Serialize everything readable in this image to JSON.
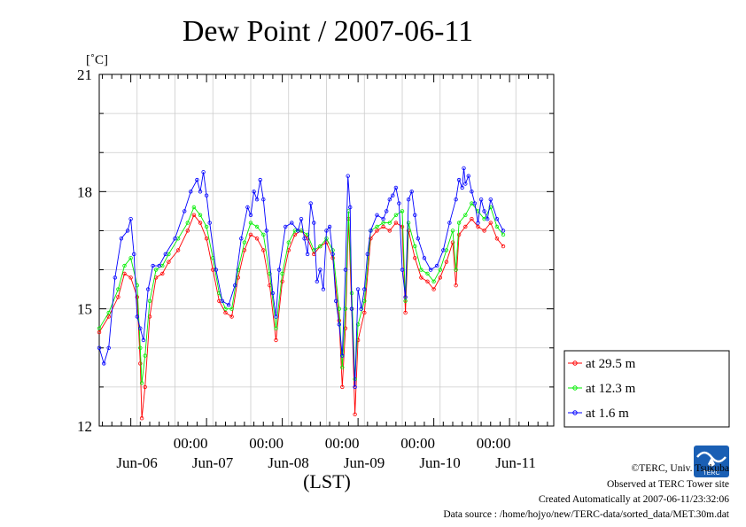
{
  "chart_data": {
    "type": "line",
    "title": "Dew Point / 2007-06-11",
    "ylabel": "[˚C]",
    "xlabel": "(LST)",
    "ylim": [
      12,
      21
    ],
    "yticks": [
      12,
      15,
      18,
      21
    ],
    "x_unit": "hours from 2007-06-05 14:00 LST",
    "xlim": [
      0,
      144
    ],
    "midnight_labels": [
      "00:00",
      "00:00",
      "00:00",
      "00:00",
      "00:00"
    ],
    "date_labels": [
      "Jun-06",
      "Jun-07",
      "Jun-08",
      "Jun-09",
      "Jun-10",
      "Jun-11"
    ],
    "grid": true,
    "legend_position": "right",
    "series": [
      {
        "name": "at 29.5 m",
        "color": "#ff0000",
        "points": [
          [
            0,
            14.4
          ],
          [
            3,
            14.8
          ],
          [
            6,
            15.3
          ],
          [
            8,
            15.9
          ],
          [
            10,
            15.8
          ],
          [
            12,
            15.3
          ],
          [
            13,
            13.6
          ],
          [
            13.5,
            12.2
          ],
          [
            14.5,
            13.0
          ],
          [
            16,
            14.8
          ],
          [
            18,
            15.8
          ],
          [
            20,
            15.9
          ],
          [
            22,
            16.2
          ],
          [
            25,
            16.5
          ],
          [
            28,
            17.0
          ],
          [
            30,
            17.4
          ],
          [
            32,
            17.2
          ],
          [
            34,
            16.8
          ],
          [
            36,
            16.0
          ],
          [
            38,
            15.2
          ],
          [
            40,
            14.9
          ],
          [
            42,
            14.8
          ],
          [
            44,
            15.8
          ],
          [
            46,
            16.5
          ],
          [
            48,
            16.9
          ],
          [
            50,
            16.8
          ],
          [
            52,
            16.5
          ],
          [
            54,
            15.6
          ],
          [
            56,
            14.2
          ],
          [
            58,
            15.7
          ],
          [
            60,
            16.5
          ],
          [
            62,
            16.9
          ],
          [
            64,
            17.0
          ],
          [
            66,
            16.8
          ],
          [
            68,
            16.4
          ],
          [
            70,
            16.6
          ],
          [
            72,
            16.7
          ],
          [
            74,
            16.3
          ],
          [
            76,
            14.7
          ],
          [
            77,
            13.0
          ],
          [
            78,
            14.5
          ],
          [
            79,
            17.3
          ],
          [
            80,
            15.0
          ],
          [
            81,
            12.3
          ],
          [
            82,
            14.2
          ],
          [
            84,
            14.9
          ],
          [
            86,
            16.8
          ],
          [
            88,
            17.0
          ],
          [
            90,
            17.1
          ],
          [
            92,
            17.0
          ],
          [
            94,
            17.2
          ],
          [
            96,
            17.1
          ],
          [
            97,
            14.9
          ],
          [
            98,
            17.0
          ],
          [
            100,
            16.3
          ],
          [
            102,
            15.8
          ],
          [
            104,
            15.7
          ],
          [
            106,
            15.5
          ],
          [
            108,
            15.8
          ],
          [
            110,
            16.2
          ],
          [
            112,
            16.7
          ],
          [
            113,
            15.6
          ],
          [
            114,
            16.9
          ],
          [
            116,
            17.1
          ],
          [
            118,
            17.3
          ],
          [
            120,
            17.1
          ],
          [
            122,
            17.0
          ],
          [
            124,
            17.2
          ],
          [
            126,
            16.8
          ],
          [
            128,
            16.6
          ]
        ]
      },
      {
        "name": "at 12.3 m",
        "color": "#00ee00",
        "points": [
          [
            0,
            14.5
          ],
          [
            3,
            14.9
          ],
          [
            6,
            15.5
          ],
          [
            8,
            16.1
          ],
          [
            10,
            16.3
          ],
          [
            12,
            15.6
          ],
          [
            13,
            14.0
          ],
          [
            13.5,
            13.1
          ],
          [
            14.5,
            13.8
          ],
          [
            16,
            15.2
          ],
          [
            18,
            16.0
          ],
          [
            20,
            16.1
          ],
          [
            22,
            16.4
          ],
          [
            25,
            16.8
          ],
          [
            28,
            17.2
          ],
          [
            30,
            17.6
          ],
          [
            32,
            17.4
          ],
          [
            34,
            17.1
          ],
          [
            36,
            16.3
          ],
          [
            38,
            15.4
          ],
          [
            40,
            15.0
          ],
          [
            42,
            15.0
          ],
          [
            44,
            16.0
          ],
          [
            46,
            16.7
          ],
          [
            48,
            17.2
          ],
          [
            50,
            17.1
          ],
          [
            52,
            16.9
          ],
          [
            54,
            15.9
          ],
          [
            56,
            14.5
          ],
          [
            58,
            15.9
          ],
          [
            60,
            16.7
          ],
          [
            62,
            17.0
          ],
          [
            64,
            17.0
          ],
          [
            66,
            16.9
          ],
          [
            68,
            16.5
          ],
          [
            70,
            16.6
          ],
          [
            72,
            16.8
          ],
          [
            74,
            16.5
          ],
          [
            76,
            15.0
          ],
          [
            77,
            13.5
          ],
          [
            78,
            15.0
          ],
          [
            79,
            17.5
          ],
          [
            80,
            15.4
          ],
          [
            81,
            13.2
          ],
          [
            82,
            14.6
          ],
          [
            84,
            15.2
          ],
          [
            86,
            17.0
          ],
          [
            88,
            17.1
          ],
          [
            90,
            17.2
          ],
          [
            92,
            17.2
          ],
          [
            94,
            17.4
          ],
          [
            96,
            17.5
          ],
          [
            97,
            15.2
          ],
          [
            98,
            17.2
          ],
          [
            100,
            16.6
          ],
          [
            102,
            16.0
          ],
          [
            104,
            15.9
          ],
          [
            106,
            15.7
          ],
          [
            108,
            16.0
          ],
          [
            110,
            16.5
          ],
          [
            112,
            17.0
          ],
          [
            113,
            16.0
          ],
          [
            114,
            17.2
          ],
          [
            116,
            17.4
          ],
          [
            118,
            17.7
          ],
          [
            120,
            17.5
          ],
          [
            122,
            17.3
          ],
          [
            124,
            17.6
          ],
          [
            126,
            17.1
          ],
          [
            128,
            16.9
          ]
        ]
      },
      {
        "name": "at 1.6 m",
        "color": "#0000ff",
        "points": [
          [
            0,
            14.0
          ],
          [
            1.5,
            13.6
          ],
          [
            3,
            14.0
          ],
          [
            5,
            15.8
          ],
          [
            7,
            16.8
          ],
          [
            9,
            17.0
          ],
          [
            10,
            17.3
          ],
          [
            11,
            16.4
          ],
          [
            12,
            14.8
          ],
          [
            13,
            14.5
          ],
          [
            14,
            14.2
          ],
          [
            15.5,
            15.5
          ],
          [
            17,
            16.1
          ],
          [
            19,
            16.1
          ],
          [
            21,
            16.4
          ],
          [
            24,
            16.8
          ],
          [
            27,
            17.5
          ],
          [
            29,
            18.0
          ],
          [
            31,
            18.3
          ],
          [
            32,
            18.0
          ],
          [
            33,
            18.5
          ],
          [
            34,
            17.9
          ],
          [
            35,
            17.2
          ],
          [
            37,
            16.0
          ],
          [
            39,
            15.2
          ],
          [
            41,
            15.1
          ],
          [
            43,
            15.6
          ],
          [
            45,
            16.8
          ],
          [
            47,
            17.6
          ],
          [
            48,
            17.4
          ],
          [
            49,
            18.0
          ],
          [
            50,
            17.8
          ],
          [
            51,
            18.3
          ],
          [
            52,
            17.8
          ],
          [
            53,
            17.0
          ],
          [
            55,
            15.4
          ],
          [
            56,
            14.8
          ],
          [
            57,
            16.0
          ],
          [
            59,
            17.1
          ],
          [
            61,
            17.2
          ],
          [
            63,
            17.0
          ],
          [
            64,
            17.3
          ],
          [
            65,
            16.8
          ],
          [
            66,
            16.4
          ],
          [
            67,
            17.7
          ],
          [
            68,
            17.2
          ],
          [
            69,
            15.7
          ],
          [
            70,
            16.0
          ],
          [
            71,
            15.5
          ],
          [
            72,
            17.0
          ],
          [
            73,
            17.1
          ],
          [
            74,
            16.4
          ],
          [
            75,
            15.2
          ],
          [
            76,
            14.6
          ],
          [
            77,
            13.8
          ],
          [
            78,
            16.0
          ],
          [
            78.8,
            18.4
          ],
          [
            79.5,
            17.6
          ],
          [
            80,
            15.0
          ],
          [
            81,
            13.0
          ],
          [
            82,
            15.5
          ],
          [
            83,
            15.0
          ],
          [
            84,
            15.5
          ],
          [
            85,
            16.4
          ],
          [
            86,
            17.0
          ],
          [
            88,
            17.4
          ],
          [
            90,
            17.3
          ],
          [
            91,
            17.5
          ],
          [
            92,
            17.8
          ],
          [
            93,
            17.9
          ],
          [
            94,
            18.1
          ],
          [
            95,
            17.7
          ],
          [
            96,
            16.0
          ],
          [
            97,
            15.3
          ],
          [
            98,
            17.8
          ],
          [
            99,
            18.0
          ],
          [
            100,
            17.4
          ],
          [
            101,
            16.8
          ],
          [
            103,
            16.3
          ],
          [
            105,
            16.0
          ],
          [
            107,
            16.1
          ],
          [
            109,
            16.5
          ],
          [
            111,
            17.2
          ],
          [
            113,
            17.8
          ],
          [
            114,
            18.3
          ],
          [
            115,
            18.1
          ],
          [
            115.5,
            18.6
          ],
          [
            116,
            18.2
          ],
          [
            117,
            18.4
          ],
          [
            118,
            18.0
          ],
          [
            119,
            17.7
          ],
          [
            120,
            17.2
          ],
          [
            121,
            17.8
          ],
          [
            122,
            17.5
          ],
          [
            123,
            17.3
          ],
          [
            124,
            17.8
          ],
          [
            126,
            17.3
          ],
          [
            128,
            17.0
          ]
        ]
      }
    ]
  },
  "legend": {
    "items": [
      "at 29.5 m",
      "at 12.3 m",
      "at 1.6 m"
    ]
  },
  "footer": {
    "copyright": "©TERC, Univ. Tsukuba",
    "site": "Observed at TERC Tower site",
    "created": "Created Automatically at 2007-06-11/23:32:06",
    "source": "Data source : /home/hojyo/new/TERC-data/sorted_data/MET.30m.dat",
    "logo_text": "TERC"
  }
}
